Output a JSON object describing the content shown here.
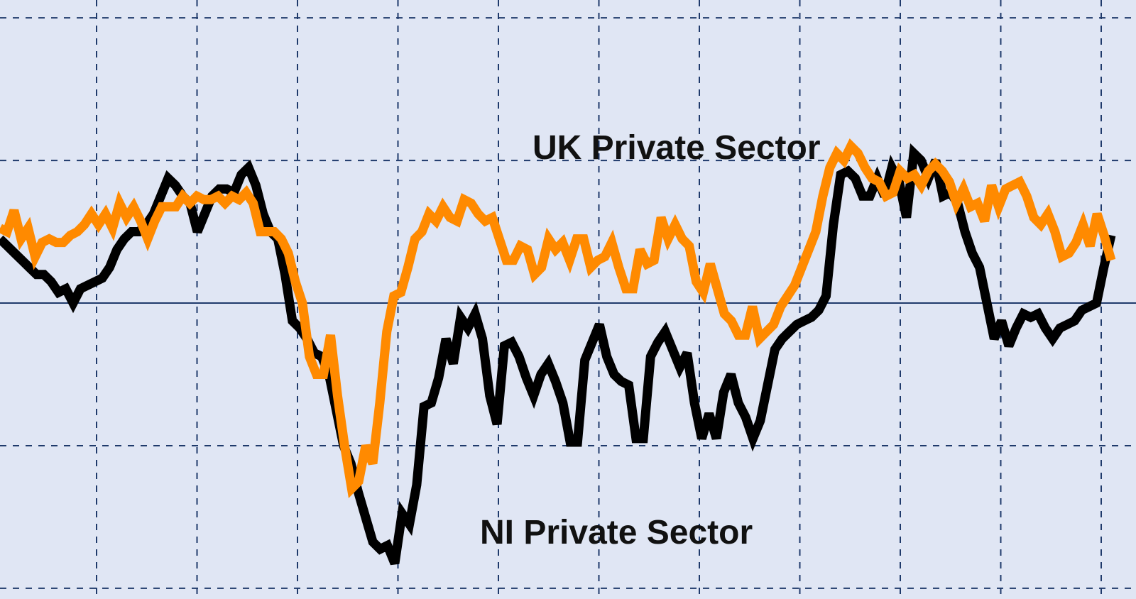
{
  "chart_data": {
    "type": "line",
    "title": "",
    "xlabel": "",
    "ylabel": "",
    "grid": true,
    "y_grid_values": [
      80,
      40,
      0,
      -40,
      -80
    ],
    "x_grid_count": 11,
    "baseline_value": 0,
    "ylim": [
      -83,
      85
    ],
    "colors": {
      "background": "#e0e6f4",
      "grid": "#1f3a6b",
      "baseline": "#1f3a6b",
      "NI Private Sector": "#000000",
      "UK Private Sector": "#ff8a00"
    },
    "series": [
      {
        "name": "UK Private Sector",
        "values": [
          21,
          20,
          26,
          18,
          21,
          13,
          17,
          18,
          17,
          17,
          19,
          20,
          22,
          25,
          22,
          25,
          21,
          28,
          24,
          27,
          23,
          18,
          23,
          27,
          27,
          27,
          30,
          28,
          30,
          29,
          29,
          30,
          28,
          30,
          29,
          31,
          28,
          20,
          20,
          20,
          18,
          14,
          6,
          0,
          -15,
          -20,
          -20,
          -9,
          -26,
          -40,
          -52,
          -50,
          -40,
          -45,
          -28,
          -8,
          2,
          3,
          10,
          18,
          20,
          25,
          23,
          27,
          24,
          23,
          29,
          28,
          25,
          23,
          24,
          18,
          12,
          12,
          16,
          15,
          8,
          10,
          18,
          15,
          17,
          12,
          18,
          18,
          10,
          12,
          13,
          17,
          10,
          4,
          4,
          15,
          11,
          12,
          24,
          18,
          22,
          18,
          16,
          6,
          3,
          11,
          4,
          -3,
          -5,
          -9,
          -9,
          -1,
          -10,
          -8,
          -6,
          -1,
          2,
          5,
          10,
          15,
          20,
          30,
          38,
          42,
          40,
          44,
          42,
          38,
          35,
          34,
          30,
          31,
          37,
          35,
          36,
          33,
          37,
          39,
          37,
          34,
          28,
          32,
          27,
          28,
          23,
          33,
          27,
          32,
          33,
          34,
          30,
          24,
          22,
          25,
          20,
          13,
          14,
          17,
          22,
          16,
          25,
          19,
          12
        ]
      },
      {
        "name": "NI Private Sector",
        "values": [
          18,
          16,
          14,
          12,
          10,
          8,
          8,
          6,
          3,
          4,
          0,
          4,
          5,
          6,
          7,
          10,
          15,
          18,
          20,
          20,
          22,
          25,
          30,
          35,
          33,
          30,
          28,
          20,
          25,
          30,
          32,
          32,
          31,
          36,
          38,
          33,
          25,
          20,
          18,
          8,
          -5,
          -7,
          -10,
          -14,
          -15,
          -20,
          -30,
          -40,
          -45,
          -53,
          -60,
          -67,
          -69,
          -68,
          -73,
          -59,
          -62,
          -51,
          -29,
          -28,
          -21,
          -10,
          -17,
          -4,
          -7,
          -3,
          -10,
          -26,
          -34,
          -12,
          -11,
          -15,
          -21,
          -26,
          -20,
          -17,
          -22,
          -28,
          -39,
          -39,
          -16,
          -11,
          -6,
          -15,
          -20,
          -22,
          -23,
          -38,
          -38,
          -15,
          -11,
          -8,
          -13,
          -18,
          -14,
          -28,
          -38,
          -31,
          -38,
          -25,
          -20,
          -28,
          -32,
          -38,
          -33,
          -23,
          -13,
          -10,
          -8,
          -6,
          -5,
          -4,
          -2,
          2,
          22,
          36,
          37,
          35,
          30,
          30,
          35,
          30,
          38,
          34,
          24,
          42,
          40,
          35,
          40,
          30,
          31,
          28,
          20,
          14,
          10,
          0,
          -10,
          -5,
          -12,
          -7,
          -3,
          -4,
          -3,
          -7,
          -10,
          -7,
          -6,
          -5,
          -2,
          -1,
          0,
          10,
          19
        ]
      }
    ],
    "annotations": [
      {
        "text": "UK Private Sector",
        "series": "UK Private Sector"
      },
      {
        "text": "NI Private Sector",
        "series": "NI Private Sector"
      }
    ]
  }
}
